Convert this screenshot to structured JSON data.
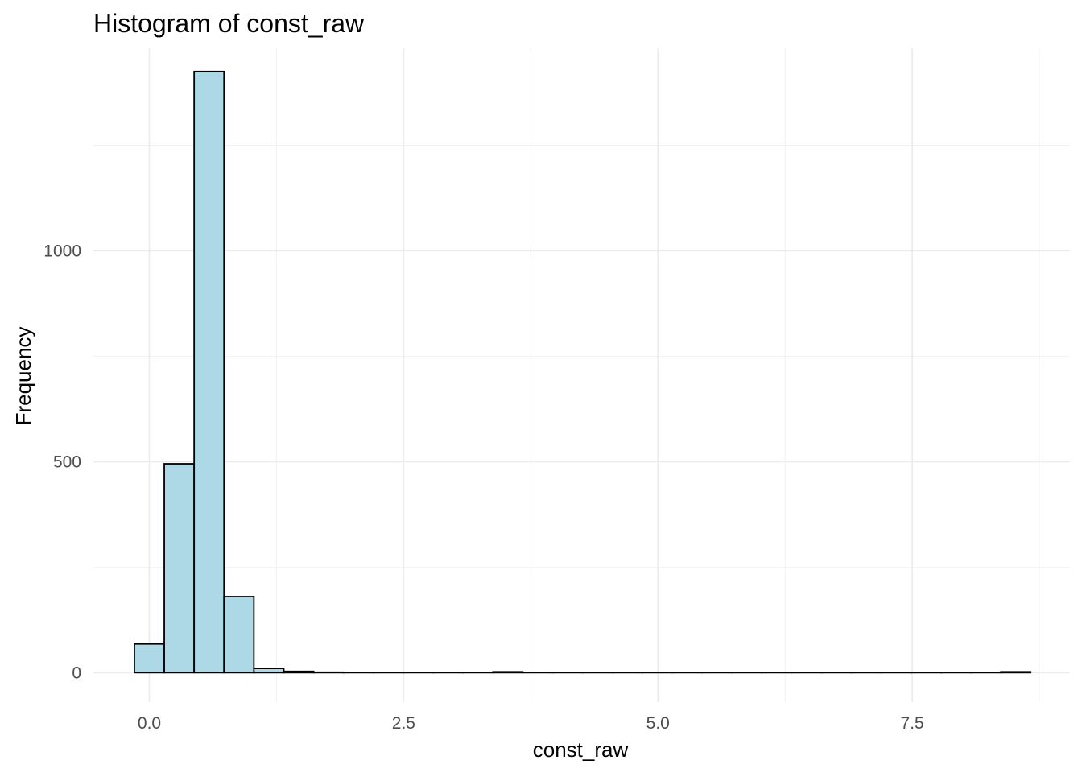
{
  "chart_data": {
    "type": "bar",
    "title": "Histogram of const_raw",
    "xlabel": "const_raw",
    "ylabel": "Frequency",
    "x_ticks": [
      0.0,
      2.5,
      5.0,
      7.5
    ],
    "x_tick_labels": [
      "0.0",
      "2.5",
      "5.0",
      "7.5"
    ],
    "y_ticks": [
      0,
      500,
      1000
    ],
    "y_tick_labels": [
      "0",
      "500",
      "1000"
    ],
    "xlim": [
      -0.55,
      9.05
    ],
    "ylim": [
      -70,
      1480
    ],
    "grid": true,
    "bar_fill": "#add8e6",
    "bar_edge": "#000000",
    "bin_width": 0.2937,
    "bins": [
      {
        "x0": -0.1468,
        "count": 68
      },
      {
        "x0": 0.1468,
        "count": 495
      },
      {
        "x0": 0.4405,
        "count": 1425
      },
      {
        "x0": 0.7342,
        "count": 180
      },
      {
        "x0": 1.0279,
        "count": 10
      },
      {
        "x0": 1.3216,
        "count": 3
      },
      {
        "x0": 1.6153,
        "count": 1
      },
      {
        "x0": 1.909,
        "count": 0
      },
      {
        "x0": 2.2027,
        "count": 0
      },
      {
        "x0": 2.4964,
        "count": 0
      },
      {
        "x0": 2.7901,
        "count": 0
      },
      {
        "x0": 3.0838,
        "count": 0
      },
      {
        "x0": 3.3775,
        "count": 2
      },
      {
        "x0": 3.6712,
        "count": 0
      },
      {
        "x0": 3.9649,
        "count": 0
      },
      {
        "x0": 4.2586,
        "count": 0
      },
      {
        "x0": 4.5523,
        "count": 0
      },
      {
        "x0": 4.846,
        "count": 0
      },
      {
        "x0": 5.1397,
        "count": 0
      },
      {
        "x0": 5.4334,
        "count": 0
      },
      {
        "x0": 5.7271,
        "count": 0
      },
      {
        "x0": 6.0208,
        "count": 0
      },
      {
        "x0": 6.3145,
        "count": 0
      },
      {
        "x0": 6.6082,
        "count": 0
      },
      {
        "x0": 6.9019,
        "count": 0
      },
      {
        "x0": 7.1956,
        "count": 0
      },
      {
        "x0": 7.4893,
        "count": 0
      },
      {
        "x0": 7.783,
        "count": 0
      },
      {
        "x0": 8.0767,
        "count": 0
      },
      {
        "x0": 8.3704,
        "count": 2
      }
    ]
  }
}
